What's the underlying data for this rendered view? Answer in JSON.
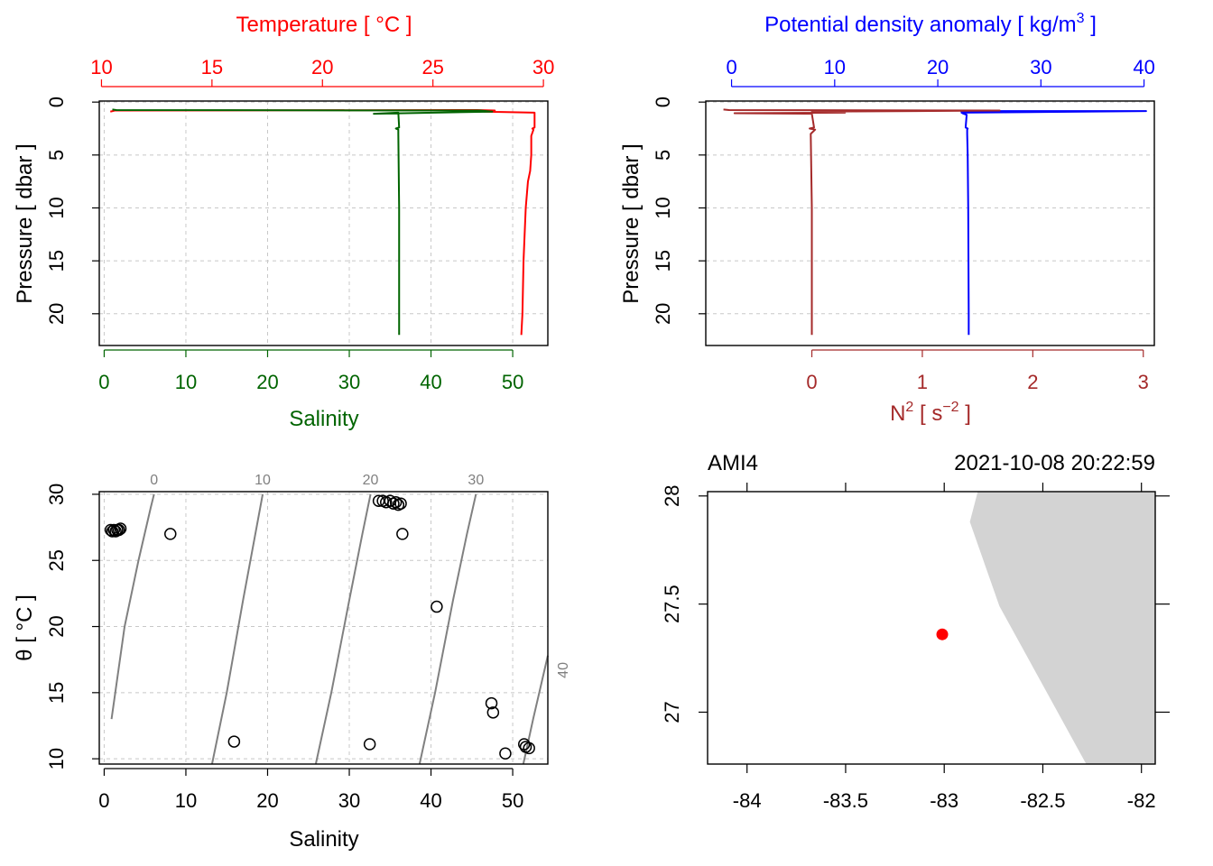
{
  "colors": {
    "temperature": "#ff0000",
    "salinity": "#006400",
    "density": "#0000ff",
    "n2": "#a52a2a",
    "grid": "#c8c8c8",
    "isopycnal": "#808080",
    "land": "#d3d3d3",
    "station": "#ff0000",
    "axis": "#000000"
  },
  "chart_data": [
    {
      "id": "profile-ts",
      "type": "line",
      "ylabel": "Pressure [ dbar ]",
      "ylim": [
        23,
        -0.1
      ],
      "yticks": [
        0,
        5,
        10,
        15,
        20
      ],
      "grid": true,
      "top_axis": {
        "label_main": "Temperature [ °C ]",
        "lim": [
          9.9,
          30.2
        ],
        "ticks": [
          10,
          15,
          20,
          25,
          30
        ]
      },
      "bottom_axis": {
        "label_main": "Salinity",
        "lim": [
          -0.6,
          54.3
        ],
        "ticks": [
          0,
          10,
          20,
          30,
          40,
          50
        ]
      },
      "series": [
        {
          "axis": "top",
          "color_key": "temperature",
          "x": [
            10.4,
            10.6,
            27.0,
            27.8,
            27.3,
            29.6,
            29.6,
            29.5,
            29.55,
            29.45,
            29.45,
            29.4,
            29.3,
            29.2,
            29.1,
            29.05,
            29.0
          ],
          "y": [
            0.9,
            0.8,
            0.75,
            0.8,
            0.9,
            1.0,
            2.4,
            2.5,
            2.6,
            3.2,
            5.0,
            6.5,
            7.5,
            10.0,
            15.0,
            20.0,
            22.0
          ]
        },
        {
          "axis": "bottom",
          "color_key": "salinity",
          "x": [
            1.0,
            1.5,
            46.0,
            47.5,
            33.0,
            36.0,
            36.1,
            35.7,
            36.0,
            36.0,
            36.1,
            36.1,
            36.1
          ],
          "y": [
            0.7,
            0.75,
            0.8,
            0.9,
            1.1,
            1.0,
            2.4,
            2.5,
            2.6,
            3.0,
            10.0,
            20.0,
            22.0
          ]
        }
      ]
    },
    {
      "id": "profile-density",
      "type": "line",
      "ylabel": "Pressure [ dbar ]",
      "ylim": [
        23,
        -0.1
      ],
      "yticks": [
        0,
        5,
        10,
        15,
        20
      ],
      "grid": true,
      "top_axis": {
        "label_main": "Potential density anomaly [ kg/m",
        "label_sup": "3",
        "label_tail": " ]",
        "lim": [
          -2.5,
          41
        ],
        "ticks": [
          0,
          10,
          20,
          30,
          40
        ]
      },
      "bottom_axis": {
        "label_main": "N",
        "label_sup": "2",
        "label_tail": " [ s",
        "label_sup2": "−2",
        "label_tail2": " ]",
        "lim": [
          -0.96,
          3.1
        ],
        "ticks": [
          0,
          1,
          2,
          3
        ]
      },
      "series": [
        {
          "axis": "top",
          "color_key": "density",
          "x": [
            22.2,
            40.2,
            22.3,
            22.5,
            22.8,
            22.7,
            22.9,
            22.85,
            22.85,
            22.9,
            22.95,
            23.0,
            23.0
          ],
          "y": [
            0.85,
            0.85,
            1.0,
            1.1,
            1.2,
            2.4,
            2.5,
            2.6,
            3.0,
            5.0,
            10.0,
            20.0,
            22.0
          ]
        },
        {
          "axis": "bottom",
          "color_key": "n2",
          "x": [
            -0.8,
            -0.75,
            1.7,
            0.0,
            0.3,
            -0.7,
            0.0,
            0.02,
            -0.02,
            0.03,
            -0.01,
            0.0,
            0.0,
            0.0
          ],
          "y": [
            0.7,
            0.75,
            0.8,
            0.9,
            1.0,
            1.05,
            1.1,
            2.4,
            2.5,
            2.6,
            3.0,
            10.0,
            20.0,
            22.0
          ]
        }
      ]
    },
    {
      "id": "ts-diagram",
      "type": "scatter",
      "xlabel": "Salinity",
      "ylabel_main": "θ [ °C ]",
      "xlim": [
        -0.6,
        54.3
      ],
      "ylim": [
        9.6,
        30.2
      ],
      "xticks": [
        0,
        10,
        20,
        30,
        40,
        50
      ],
      "yticks": [
        10,
        15,
        20,
        25,
        30
      ],
      "grid": true,
      "points": [
        [
          0.8,
          27.3
        ],
        [
          1.0,
          27.2
        ],
        [
          1.2,
          27.3
        ],
        [
          1.4,
          27.2
        ],
        [
          1.6,
          27.3
        ],
        [
          1.8,
          27.3
        ],
        [
          2.0,
          27.4
        ],
        [
          8.1,
          27.0
        ],
        [
          15.9,
          11.3
        ],
        [
          32.5,
          11.1
        ],
        [
          33.6,
          29.5
        ],
        [
          34.1,
          29.5
        ],
        [
          34.5,
          29.4
        ],
        [
          35.0,
          29.5
        ],
        [
          35.4,
          29.3
        ],
        [
          35.7,
          29.4
        ],
        [
          36.0,
          29.2
        ],
        [
          36.3,
          29.3
        ],
        [
          36.5,
          27.0
        ],
        [
          40.7,
          21.5
        ],
        [
          47.4,
          14.2
        ],
        [
          47.6,
          13.5
        ],
        [
          49.1,
          10.4
        ],
        [
          51.4,
          11.1
        ],
        [
          51.6,
          10.9
        ],
        [
          52.0,
          10.8
        ]
      ],
      "isopycnals": [
        {
          "label": "0",
          "points": [
            [
              0.9,
              13.0
            ],
            [
              2.5,
              20.0
            ],
            [
              4.2,
              25.0
            ],
            [
              5.7,
              29.0
            ],
            [
              6.1,
              30.0
            ]
          ]
        },
        {
          "label": "10",
          "points": [
            [
              13.2,
              9.6
            ],
            [
              15.0,
              15.0
            ],
            [
              17.0,
              22.0
            ],
            [
              18.5,
              27.0
            ],
            [
              19.4,
              30.0
            ]
          ]
        },
        {
          "label": "20",
          "points": [
            [
              25.9,
              9.6
            ],
            [
              27.8,
              15.0
            ],
            [
              30.0,
              22.0
            ],
            [
              31.6,
              27.0
            ],
            [
              32.6,
              30.0
            ]
          ]
        },
        {
          "label": "30",
          "points": [
            [
              38.6,
              9.6
            ],
            [
              40.5,
              15.0
            ],
            [
              42.7,
              22.0
            ],
            [
              44.4,
              27.0
            ],
            [
              45.5,
              30.0
            ]
          ]
        },
        {
          "label": "40",
          "points": [
            [
              51.3,
              9.6
            ],
            [
              52.5,
              13.0
            ],
            [
              54.3,
              17.8
            ]
          ]
        }
      ]
    },
    {
      "id": "station-map",
      "type": "scatter",
      "title_left": "AMI4",
      "title_right": "2021-10-08 20:22:59",
      "xlim": [
        -84.2,
        -81.93
      ],
      "ylim": [
        26.76,
        28.02
      ],
      "xticks": [
        -84,
        -83.5,
        -83,
        -82.5,
        -82
      ],
      "xtick_labels": [
        "-84",
        "-83.5",
        "-83",
        "-82.5",
        "-82"
      ],
      "yticks": [
        27,
        27.5,
        28
      ],
      "ytick_labels": [
        "27",
        "27.5",
        "28"
      ],
      "station": [
        -83.01,
        27.36
      ],
      "land": [
        [
          -82.83,
          28.02
        ],
        [
          -82.87,
          27.88
        ],
        [
          -82.72,
          27.49
        ],
        [
          -82.28,
          26.76
        ],
        [
          -81.93,
          26.76
        ],
        [
          -81.93,
          28.02
        ]
      ]
    }
  ]
}
